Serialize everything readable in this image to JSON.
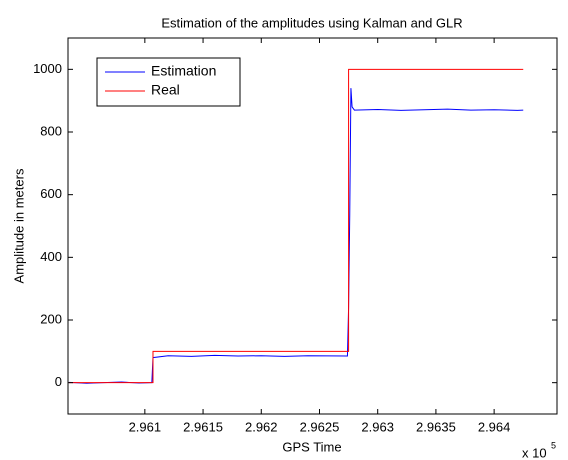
{
  "chart_data": {
    "type": "line",
    "title": "Estimation of the amplitudes using Kalman and GLR",
    "x_label": "GPS Time",
    "y_label": "Amplitude in meters",
    "x_multiplier": {
      "base": "x 10",
      "exponent": "5"
    },
    "xlim": [
      2.96034,
      2.96454
    ],
    "xticks": [
      2.961,
      2.9615,
      2.962,
      2.9625,
      2.963,
      2.9635,
      2.964
    ],
    "ylim": [
      -100,
      1100
    ],
    "yticks": [
      0,
      200,
      400,
      600,
      800,
      1000
    ],
    "grid": false,
    "legend": "upper left",
    "series": [
      {
        "name": "Estimation",
        "color": "#0000ff",
        "x": [
          2.96035,
          2.9605,
          2.96065,
          2.9608,
          2.96095,
          2.96106,
          2.96107,
          2.9612,
          2.9614,
          2.9616,
          2.9618,
          2.962,
          2.9622,
          2.9624,
          2.96274,
          2.96275,
          2.96276,
          2.96277,
          2.96278,
          2.9628,
          2.963,
          2.9632,
          2.9634,
          2.9636,
          2.9638,
          2.964,
          2.9642,
          2.96425
        ],
        "values": [
          1,
          -2,
          0,
          2,
          -1,
          0,
          80,
          86,
          84,
          87,
          85,
          86,
          84,
          86,
          85,
          240,
          540,
          940,
          880,
          870,
          872,
          869,
          871,
          873,
          870,
          871,
          869,
          870
        ]
      },
      {
        "name": "Real",
        "color": "#ff0000",
        "x": [
          2.96035,
          2.96107,
          2.96107,
          2.96275,
          2.96275,
          2.96425
        ],
        "values": [
          0,
          0,
          100,
          100,
          1000,
          1000
        ]
      }
    ]
  }
}
